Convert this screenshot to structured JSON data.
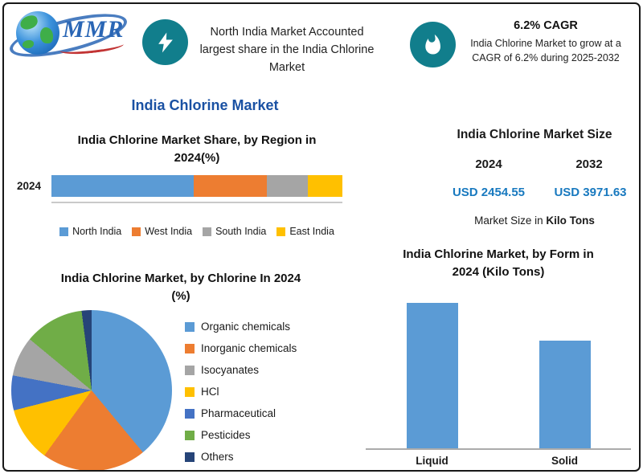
{
  "colors": {
    "teal": "#117E8C",
    "title_blue": "#1A51A3",
    "value_blue": "#1879BF"
  },
  "brand": {
    "logo_text": "MMR"
  },
  "header": {
    "callout1": {
      "text": "North India Market Accounted largest share in the India Chlorine Market"
    },
    "callout2": {
      "title": "6.2% CAGR",
      "text": "India Chlorine Market to grow at a CAGR of 6.2% during 2025-2032"
    }
  },
  "page_title": "India Chlorine Market",
  "market_size": {
    "title": "India Chlorine Market Size",
    "year_left": "2024",
    "year_right": "2032",
    "value_left": "USD 2454.55",
    "value_right": "USD 3971.63",
    "note_prefix": "Market Size in ",
    "note_bold": "Kilo Tons"
  },
  "chart_data": [
    {
      "id": "region_share",
      "type": "bar",
      "subtype": "stacked-horizontal",
      "title": "India Chlorine Market Share, by Region in 2024(%)",
      "categories": [
        "2024"
      ],
      "series": [
        {
          "name": "North India",
          "color": "#5B9BD5",
          "values": [
            49
          ]
        },
        {
          "name": "West India",
          "color": "#ED7D31",
          "values": [
            25
          ]
        },
        {
          "name": "South India",
          "color": "#A5A5A5",
          "values": [
            14
          ]
        },
        {
          "name": "East India",
          "color": "#FFC000",
          "values": [
            12
          ]
        }
      ],
      "xlim": [
        0,
        100
      ],
      "legend_position": "bottom",
      "values_estimated": true
    },
    {
      "id": "by_chlorine",
      "type": "pie",
      "title": "India Chlorine Market, by Chlorine In 2024 (%)",
      "slices": [
        {
          "name": "Organic chemicals",
          "color": "#5B9BD5",
          "value": 39
        },
        {
          "name": "Inorganic chemicals",
          "color": "#ED7D31",
          "value": 21
        },
        {
          "name": "Isocyanates",
          "color": "#A5A5A5",
          "value": 8
        },
        {
          "name": "HCl",
          "color": "#FFC000",
          "value": 11
        },
        {
          "name": "Pharmaceutical",
          "color": "#4472C4",
          "value": 7
        },
        {
          "name": "Pesticides",
          "color": "#70AD47",
          "value": 12
        },
        {
          "name": "Others",
          "color": "#264478",
          "value": 2
        }
      ],
      "draw_order": [
        0,
        1,
        3,
        4,
        2,
        5,
        6
      ],
      "start_angle_deg": 0,
      "legend_position": "right",
      "values_estimated": true
    },
    {
      "id": "by_form",
      "type": "bar",
      "title": "India Chlorine Market, by Form in 2024 (Kilo Tons)",
      "categories": [
        "Liquid",
        "Solid"
      ],
      "values": [
        100,
        74
      ],
      "ylim": [
        0,
        105
      ],
      "color": "#5B9BD5",
      "ylabel": "",
      "values_estimated": true
    }
  ]
}
